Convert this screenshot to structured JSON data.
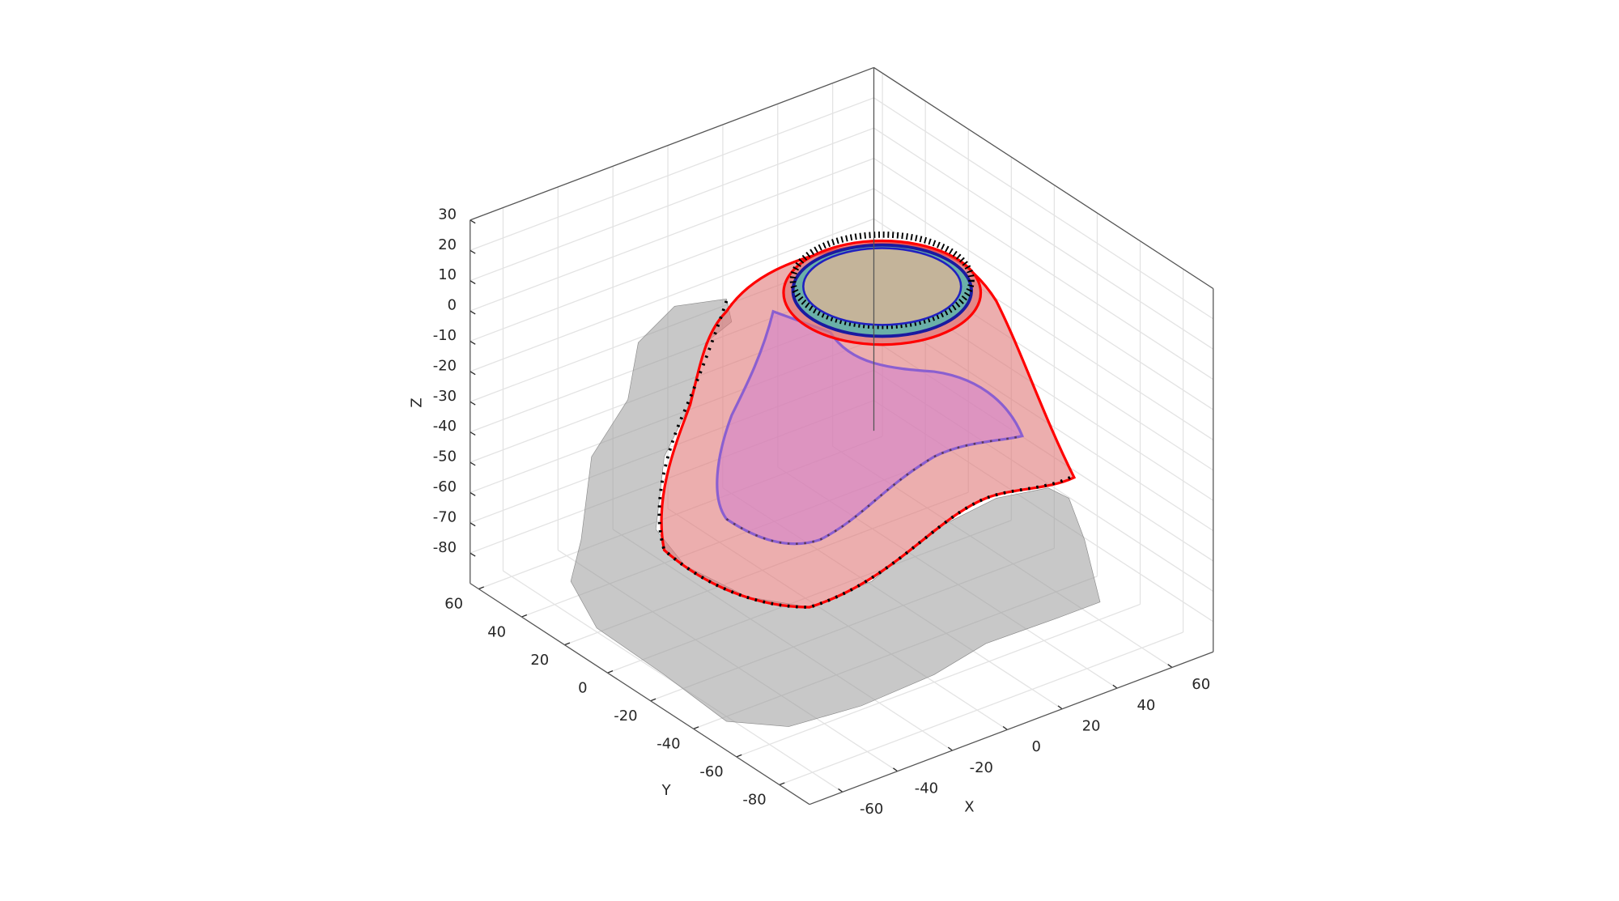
{
  "chart_data": {
    "type": "3d-surface",
    "xlabel": "X",
    "ylabel": "Y",
    "zlabel": "Z",
    "xlim": [
      -72,
      75
    ],
    "ylim": [
      -94,
      64
    ],
    "zlim": [
      -90,
      30
    ],
    "xticks": [
      -60,
      -40,
      -20,
      0,
      20,
      40,
      60
    ],
    "yticks": [
      -80,
      -60,
      -40,
      -20,
      0,
      20,
      40,
      60
    ],
    "zticks": [
      -80,
      -70,
      -60,
      -50,
      -40,
      -30,
      -20,
      -10,
      0,
      10,
      20,
      30
    ],
    "grid": true
  }
}
